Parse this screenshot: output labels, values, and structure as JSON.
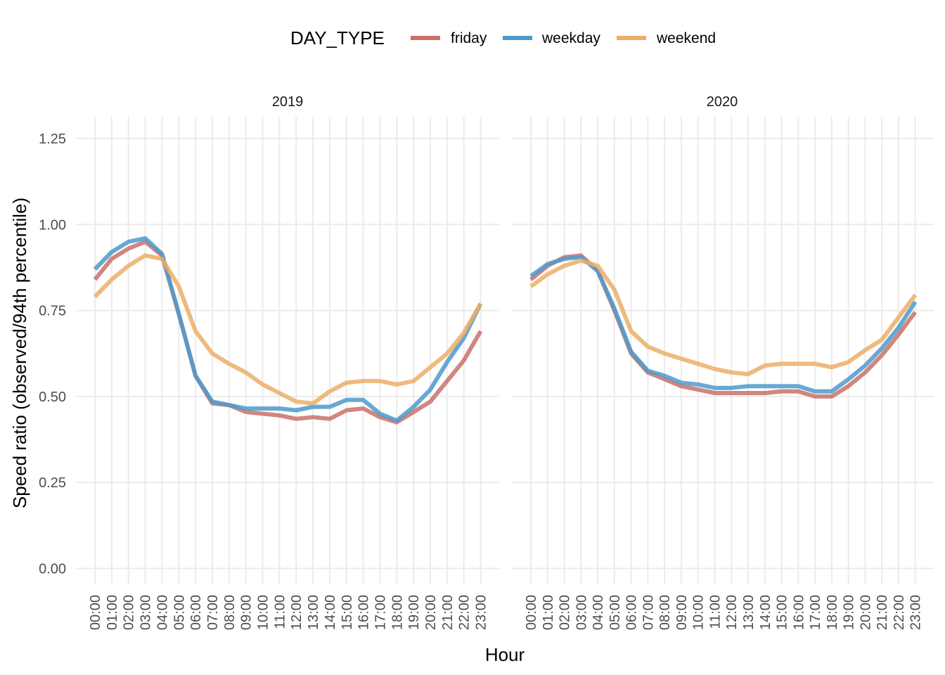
{
  "chart_data": {
    "type": "line",
    "legend": {
      "title": "DAY_TYPE",
      "placement": "top",
      "entries": [
        {
          "label": "friday",
          "color": "#C97167"
        },
        {
          "label": "weekday",
          "color": "#4C9ACC"
        },
        {
          "label": "weekend",
          "color": "#EBAE67"
        }
      ]
    },
    "xlabel": "Hour",
    "ylabel": "Speed ratio (observed/94th percentile)",
    "ylim": [
      0,
      1.25
    ],
    "yticks": [
      "0.00",
      "0.25",
      "0.50",
      "0.75",
      "1.00",
      "1.25"
    ],
    "ytick_values": [
      0,
      0.25,
      0.5,
      0.75,
      1.0,
      1.25
    ],
    "categories": [
      "00:00",
      "01:00",
      "02:00",
      "03:00",
      "04:00",
      "05:00",
      "06:00",
      "07:00",
      "08:00",
      "09:00",
      "10:00",
      "11:00",
      "12:00",
      "13:00",
      "14:00",
      "15:00",
      "16:00",
      "17:00",
      "18:00",
      "19:00",
      "20:00",
      "21:00",
      "22:00",
      "23:00"
    ],
    "grid": true,
    "panels": [
      {
        "title": "2019",
        "series": [
          {
            "name": "friday",
            "values": [
              0.84,
              0.9,
              0.93,
              0.95,
              0.91,
              0.74,
              0.56,
              0.48,
              0.475,
              0.455,
              0.45,
              0.445,
              0.435,
              0.44,
              0.435,
              0.46,
              0.465,
              0.44,
              0.425,
              0.455,
              0.485,
              0.545,
              0.605,
              0.69
            ]
          },
          {
            "name": "weekday",
            "values": [
              0.87,
              0.92,
              0.95,
              0.96,
              0.915,
              0.74,
              0.56,
              0.485,
              0.475,
              0.465,
              0.465,
              0.465,
              0.46,
              0.47,
              0.47,
              0.49,
              0.49,
              0.45,
              0.43,
              0.47,
              0.52,
              0.6,
              0.67,
              0.77
            ]
          },
          {
            "name": "weekend",
            "values": [
              0.79,
              0.84,
              0.88,
              0.91,
              0.9,
              0.82,
              0.69,
              0.625,
              0.595,
              0.57,
              0.535,
              0.51,
              0.485,
              0.48,
              0.515,
              0.54,
              0.545,
              0.545,
              0.535,
              0.545,
              0.585,
              0.625,
              0.685,
              0.77
            ]
          }
        ]
      },
      {
        "title": "2020",
        "series": [
          {
            "name": "friday",
            "values": [
              0.84,
              0.88,
              0.905,
              0.91,
              0.865,
              0.75,
              0.625,
              0.57,
              0.55,
              0.53,
              0.52,
              0.51,
              0.51,
              0.51,
              0.51,
              0.515,
              0.515,
              0.5,
              0.5,
              0.53,
              0.57,
              0.62,
              0.68,
              0.745
            ]
          },
          {
            "name": "weekday",
            "values": [
              0.85,
              0.885,
              0.9,
              0.905,
              0.865,
              0.755,
              0.63,
              0.575,
              0.56,
              0.54,
              0.535,
              0.525,
              0.525,
              0.53,
              0.53,
              0.53,
              0.53,
              0.515,
              0.515,
              0.55,
              0.59,
              0.64,
              0.7,
              0.775
            ]
          },
          {
            "name": "weekend",
            "values": [
              0.82,
              0.855,
              0.88,
              0.895,
              0.88,
              0.81,
              0.69,
              0.645,
              0.625,
              0.61,
              0.595,
              0.58,
              0.57,
              0.565,
              0.59,
              0.595,
              0.595,
              0.595,
              0.585,
              0.6,
              0.635,
              0.665,
              0.73,
              0.795
            ]
          }
        ]
      }
    ]
  }
}
